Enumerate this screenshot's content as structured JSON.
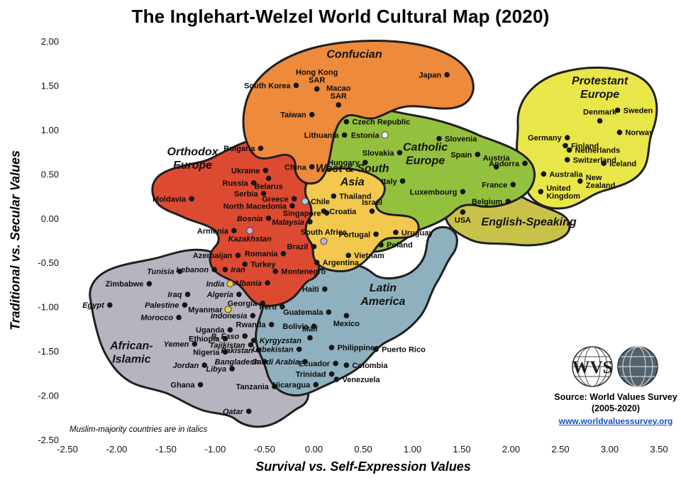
{
  "title": "The Inglehart-Welzel World Cultural Map (2020)",
  "note": "Muslim-majority countries are in italics",
  "source": {
    "line1": "Source: World Values Survey",
    "line2": "(2005-2020)",
    "link": "www.worldvaluessurvey.org"
  },
  "logo": {
    "text": "WVS"
  },
  "axes": {
    "x_label": "Survival vs. Self-Expression Values",
    "y_label": "Traditional vs. Secular Values"
  },
  "chart_data": {
    "type": "scatter",
    "title": "The Inglehart-Welzel World Cultural Map (2020)",
    "xlabel": "Survival vs. Self-Expression Values",
    "ylabel": "Traditional vs. Secular Values",
    "xlim": [
      -2.5,
      3.5
    ],
    "ylim": [
      -2.5,
      2.0
    ],
    "x_ticks": [
      -2.5,
      -2.0,
      -1.5,
      -1.0,
      -0.5,
      0.0,
      0.5,
      1.0,
      1.5,
      2.0,
      2.5,
      3.0,
      3.5
    ],
    "y_ticks": [
      2.0,
      1.5,
      1.0,
      0.5,
      0.0,
      -0.5,
      -1.0,
      -1.5,
      -2.0,
      -2.5
    ],
    "marker_colors": {
      "black": "#161616",
      "open": "#ffffff",
      "yellow": "#f2cd2a",
      "blue": "#a9cbe0",
      "lavender": "#c6b4d8"
    },
    "zones": [
      {
        "id": "african-islamic",
        "label_lines": [
          "African-",
          "Islamic"
        ],
        "color": "#b7b4c0",
        "label_x": -1.85,
        "label_y": -1.55
      },
      {
        "id": "latin-america",
        "label_lines": [
          "Latin",
          "America"
        ],
        "color": "#8fb0bf",
        "label_x": 0.7,
        "label_y": -0.9
      },
      {
        "id": "protestant-europe",
        "label_lines": [
          "Protestant",
          "Europe"
        ],
        "color": "#e9e64a",
        "label_x": 2.9,
        "label_y": 1.44
      },
      {
        "id": "english-speaking",
        "label_lines": [
          "English-Speaking"
        ],
        "color": "#c9c24a",
        "label_x": 2.18,
        "label_y": -0.08
      },
      {
        "id": "catholic-europe",
        "label_lines": [
          "Catholic",
          "Europe"
        ],
        "color": "#94c13d",
        "label_x": 1.13,
        "label_y": 0.69
      },
      {
        "id": "orthodox-europe",
        "label_lines": [
          "Orthodox",
          "Europe"
        ],
        "color": "#dd4a32",
        "label_x": -1.23,
        "label_y": 0.64
      },
      {
        "id": "west-south-asia",
        "label_lines": [
          "West & South",
          "Asia"
        ],
        "color": "#f2c94e",
        "label_x": 0.39,
        "label_y": 0.45
      },
      {
        "id": "confucian",
        "label_lines": [
          "Confucian"
        ],
        "color": "#ee8a3c",
        "label_x": 0.41,
        "label_y": 1.81
      }
    ],
    "points": [
      {
        "name": "Japan",
        "x": 1.35,
        "y": 1.62,
        "side": "left"
      },
      {
        "name": "South Korea",
        "x": -0.18,
        "y": 1.5,
        "side": "left"
      },
      {
        "name": "Hong Kong SAR",
        "lines": [
          "Hong Kong",
          "SAR"
        ],
        "x": 0.03,
        "y": 1.46,
        "side": "top"
      },
      {
        "name": "Macao SAR",
        "lines": [
          "Macao",
          "SAR"
        ],
        "x": 0.25,
        "y": 1.28,
        "side": "top"
      },
      {
        "name": "Taiwan",
        "x": -0.02,
        "y": 1.17,
        "side": "left"
      },
      {
        "name": "China",
        "x": -0.02,
        "y": 0.58,
        "side": "left"
      },
      {
        "name": "Czech Republic",
        "x": 0.33,
        "y": 1.09,
        "side": "right"
      },
      {
        "name": "Lithuania",
        "x": 0.31,
        "y": 0.94,
        "side": "left"
      },
      {
        "name": "Estonia",
        "x": 0.72,
        "y": 0.94,
        "side": "left",
        "marker": "open"
      },
      {
        "name": "Slovenia",
        "x": 1.27,
        "y": 0.9,
        "side": "right"
      },
      {
        "name": "Slovakia",
        "x": 0.87,
        "y": 0.74,
        "side": "left"
      },
      {
        "name": "Hungary",
        "x": 0.52,
        "y": 0.63,
        "side": "left"
      },
      {
        "name": "Spain",
        "x": 1.66,
        "y": 0.72,
        "side": "left"
      },
      {
        "name": "Austria",
        "x": 1.85,
        "y": 0.58,
        "side": "top"
      },
      {
        "name": "Andorra",
        "x": 2.14,
        "y": 0.62,
        "side": "left"
      },
      {
        "name": "Italy",
        "x": 0.9,
        "y": 0.42,
        "side": "left"
      },
      {
        "name": "Luxembourg",
        "x": 1.51,
        "y": 0.3,
        "side": "left"
      },
      {
        "name": "France",
        "x": 2.02,
        "y": 0.38,
        "side": "left"
      },
      {
        "name": "Belgium",
        "x": 1.97,
        "y": 0.19,
        "side": "left"
      },
      {
        "name": "Croatia",
        "x": 0.1,
        "y": 0.08,
        "side": "right"
      },
      {
        "name": "Portugal",
        "x": 0.63,
        "y": -0.18,
        "side": "left"
      },
      {
        "name": "Poland",
        "x": 0.68,
        "y": -0.3,
        "side": "right"
      },
      {
        "name": "Sweden",
        "x": 3.08,
        "y": 1.22,
        "side": "right"
      },
      {
        "name": "Denmark",
        "x": 2.9,
        "y": 1.1,
        "side": "top"
      },
      {
        "name": "Norway",
        "x": 3.1,
        "y": 0.97,
        "side": "right"
      },
      {
        "name": "Germany",
        "x": 2.57,
        "y": 0.91,
        "side": "left"
      },
      {
        "name": "Finland",
        "x": 2.55,
        "y": 0.82,
        "side": "right"
      },
      {
        "name": "Netherlands",
        "x": 2.59,
        "y": 0.77,
        "side": "right"
      },
      {
        "name": "Switzerland",
        "x": 2.57,
        "y": 0.66,
        "side": "right"
      },
      {
        "name": "Iceland",
        "x": 2.94,
        "y": 0.62,
        "side": "right"
      },
      {
        "name": "Australia",
        "x": 2.33,
        "y": 0.5,
        "side": "right"
      },
      {
        "name": "New Zealand",
        "lines": [
          "New",
          "Zealand"
        ],
        "x": 2.7,
        "y": 0.42,
        "side": "right"
      },
      {
        "name": "United Kingdom",
        "lines": [
          "United",
          "Kingdom"
        ],
        "x": 2.3,
        "y": 0.3,
        "side": "right"
      },
      {
        "name": "USA",
        "x": 1.51,
        "y": 0.07,
        "side": "bottom"
      },
      {
        "name": "Bulgaria",
        "x": -0.54,
        "y": 0.79,
        "side": "left"
      },
      {
        "name": "Ukraine",
        "x": -0.49,
        "y": 0.54,
        "side": "left"
      },
      {
        "name": "Russia",
        "x": -0.61,
        "y": 0.4,
        "side": "left"
      },
      {
        "name": "Belarus",
        "x": -0.46,
        "y": 0.45,
        "side": "bottom"
      },
      {
        "name": "Serbia",
        "x": -0.51,
        "y": 0.28,
        "side": "left"
      },
      {
        "name": "Greece",
        "x": -0.2,
        "y": 0.22,
        "side": "left"
      },
      {
        "name": "North Macedonia",
        "x": -0.22,
        "y": 0.14,
        "side": "left"
      },
      {
        "name": "Moldavia",
        "x": -1.24,
        "y": 0.22,
        "side": "left"
      },
      {
        "name": "Bosnia",
        "x": -0.46,
        "y": 0.0,
        "side": "left",
        "italic": true
      },
      {
        "name": "Armenia",
        "x": -0.81,
        "y": -0.14,
        "side": "left"
      },
      {
        "name": "Kazakhstan",
        "x": -0.65,
        "y": -0.14,
        "side": "bottom",
        "italic": true,
        "marker": "lavender"
      },
      {
        "name": "Romania",
        "x": -0.31,
        "y": -0.4,
        "side": "left"
      },
      {
        "name": "Azerbaijan",
        "x": -0.77,
        "y": -0.42,
        "side": "left"
      },
      {
        "name": "Montenegro",
        "x": -0.39,
        "y": -0.6,
        "side": "right"
      },
      {
        "name": "Albania",
        "x": -0.47,
        "y": -0.73,
        "side": "left",
        "italic": true
      },
      {
        "name": "Georgia",
        "x": -0.52,
        "y": -0.96,
        "side": "left"
      },
      {
        "name": "Turkey",
        "x": -0.7,
        "y": -0.52,
        "side": "right"
      },
      {
        "name": "Iran",
        "x": -0.9,
        "y": -0.58,
        "side": "right",
        "italic": true
      },
      {
        "name": "Lebanon",
        "x": -1.01,
        "y": -0.58,
        "side": "left",
        "italic": true
      },
      {
        "name": "Tunisia",
        "x": -1.36,
        "y": -0.6,
        "side": "left",
        "italic": true
      },
      {
        "name": "Zimbabwe",
        "x": -1.67,
        "y": -0.74,
        "side": "left"
      },
      {
        "name": "India",
        "x": -0.85,
        "y": -0.74,
        "side": "left",
        "italic": true,
        "marker": "yellow"
      },
      {
        "name": "Algeria",
        "x": -0.76,
        "y": -0.86,
        "side": "left",
        "italic": true
      },
      {
        "name": "Iraq",
        "x": -1.28,
        "y": -0.86,
        "side": "left",
        "italic": true
      },
      {
        "name": "Egypt",
        "x": -2.07,
        "y": -0.98,
        "side": "left",
        "italic": true
      },
      {
        "name": "Palestine",
        "x": -1.31,
        "y": -0.98,
        "side": "left",
        "italic": true
      },
      {
        "name": "Morocco",
        "x": -1.37,
        "y": -1.12,
        "side": "left",
        "italic": true
      },
      {
        "name": "Myanmar",
        "x": -0.87,
        "y": -1.03,
        "side": "left",
        "marker": "yellow"
      },
      {
        "name": "Indonesia",
        "x": -0.62,
        "y": -1.1,
        "side": "left",
        "italic": true
      },
      {
        "name": "Rwanda",
        "x": -0.43,
        "y": -1.2,
        "side": "left"
      },
      {
        "name": "Uganda",
        "x": -0.85,
        "y": -1.26,
        "side": "left"
      },
      {
        "name": "Ethiopia",
        "x": -0.9,
        "y": -1.36,
        "side": "left"
      },
      {
        "name": "B. Faso",
        "x": -0.7,
        "y": -1.33,
        "side": "left",
        "italic": true
      },
      {
        "name": "Tajikistan",
        "x": -0.64,
        "y": -1.43,
        "side": "left",
        "italic": true
      },
      {
        "name": "Kyrgyzstan",
        "x": -0.61,
        "y": -1.38,
        "side": "right",
        "italic": true
      },
      {
        "name": "Yemen",
        "x": -1.21,
        "y": -1.42,
        "side": "left",
        "italic": true
      },
      {
        "name": "Nigeria",
        "x": -0.9,
        "y": -1.51,
        "side": "left"
      },
      {
        "name": "Pakistan",
        "x": -0.56,
        "y": -1.49,
        "side": "left",
        "italic": true
      },
      {
        "name": "Uzbekistan",
        "x": -0.15,
        "y": -1.48,
        "side": "left",
        "italic": true
      },
      {
        "name": "Bangladesh",
        "x": -0.5,
        "y": -1.62,
        "side": "left",
        "italic": true
      },
      {
        "name": "Saudi Arabia",
        "x": -0.09,
        "y": -1.62,
        "side": "left",
        "italic": true
      },
      {
        "name": "Jordan",
        "x": -1.11,
        "y": -1.66,
        "side": "left",
        "italic": true
      },
      {
        "name": "Libya",
        "x": -0.83,
        "y": -1.7,
        "side": "left",
        "italic": true
      },
      {
        "name": "Ghana",
        "x": -1.15,
        "y": -1.88,
        "side": "left"
      },
      {
        "name": "Tanzania",
        "x": -0.4,
        "y": -1.9,
        "side": "left"
      },
      {
        "name": "Qatar",
        "x": -0.66,
        "y": -2.18,
        "side": "left",
        "italic": true
      },
      {
        "name": "Mali",
        "x": -0.04,
        "y": -1.35,
        "side": "top",
        "italic": true
      },
      {
        "name": "Chile",
        "x": -0.09,
        "y": 0.19,
        "side": "right",
        "marker": "blue"
      },
      {
        "name": "Thailand",
        "x": 0.2,
        "y": 0.25,
        "side": "right"
      },
      {
        "name": "Singapore",
        "x": 0.13,
        "y": 0.06,
        "side": "left"
      },
      {
        "name": "Israel",
        "x": 0.59,
        "y": 0.08,
        "side": "top"
      },
      {
        "name": "Malaysia",
        "x": -0.04,
        "y": -0.04,
        "side": "left",
        "italic": true
      },
      {
        "name": "South Africa",
        "x": 0.1,
        "y": -0.26,
        "side": "top",
        "marker": "lavender"
      },
      {
        "name": "Brazil",
        "x": 0.0,
        "y": -0.32,
        "side": "left"
      },
      {
        "name": "Vietnam",
        "x": 0.35,
        "y": -0.42,
        "side": "right"
      },
      {
        "name": "Uruguay",
        "x": 0.83,
        "y": -0.16,
        "side": "right"
      },
      {
        "name": "Argentina",
        "x": 0.03,
        "y": -0.5,
        "side": "right"
      },
      {
        "name": "Haiti",
        "x": 0.11,
        "y": -0.8,
        "side": "left"
      },
      {
        "name": "Peru",
        "x": -0.32,
        "y": -1.0,
        "side": "left"
      },
      {
        "name": "Guatemala",
        "x": 0.15,
        "y": -1.06,
        "side": "left"
      },
      {
        "name": "Mexico",
        "x": 0.33,
        "y": -1.1,
        "side": "bottom"
      },
      {
        "name": "Bolivia",
        "x": 0.0,
        "y": -1.22,
        "side": "left"
      },
      {
        "name": "Philippines",
        "x": 0.18,
        "y": -1.46,
        "side": "right"
      },
      {
        "name": "Puerto Rico",
        "x": 0.63,
        "y": -1.48,
        "side": "right"
      },
      {
        "name": "Ecuador",
        "x": 0.22,
        "y": -1.64,
        "side": "left"
      },
      {
        "name": "Colombia",
        "x": 0.33,
        "y": -1.66,
        "side": "right"
      },
      {
        "name": "Trinidad",
        "x": 0.18,
        "y": -1.76,
        "side": "left"
      },
      {
        "name": "Venezuela",
        "x": 0.23,
        "y": -1.82,
        "side": "right"
      },
      {
        "name": "Nicaragua",
        "x": 0.02,
        "y": -1.88,
        "side": "left"
      }
    ]
  }
}
